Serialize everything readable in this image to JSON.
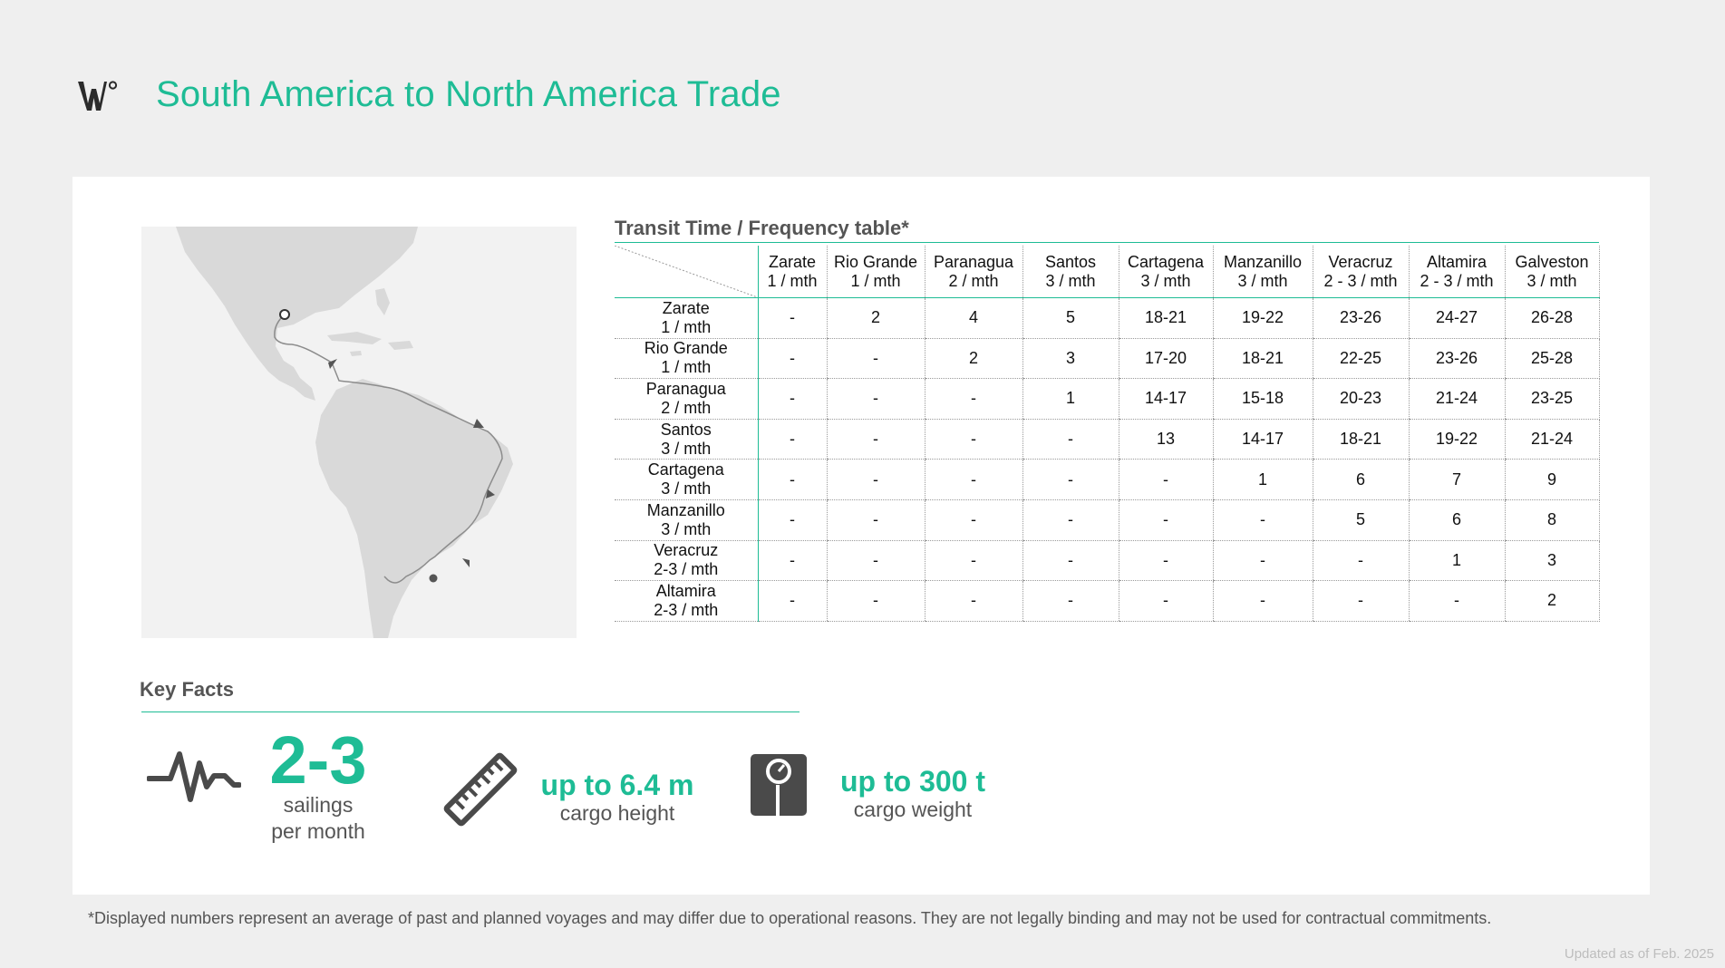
{
  "header": {
    "title": "South America to North America Trade",
    "logo_icon": "wallenius-wilhelmsen-logo-icon"
  },
  "colors": {
    "accent": "#1ebc95",
    "background": "#efefef",
    "card": "#ffffff",
    "text_muted": "#555555",
    "map_land": "#d9d9d9"
  },
  "map": {
    "icon": "route-map-icon",
    "route_color": "#8c8c8c"
  },
  "table": {
    "title": "Transit Time / Frequency table*",
    "columns": [
      {
        "port": "Zarate",
        "freq": "1 / mth"
      },
      {
        "port": "Rio Grande",
        "freq": "1 / mth"
      },
      {
        "port": "Paranagua",
        "freq": "2 / mth"
      },
      {
        "port": "Santos",
        "freq": "3 / mth"
      },
      {
        "port": "Cartagena",
        "freq": "3 / mth"
      },
      {
        "port": "Manzanillo",
        "freq": "3 / mth"
      },
      {
        "port": "Veracruz",
        "freq": "2 - 3 / mth"
      },
      {
        "port": "Altamira",
        "freq": "2 - 3 / mth"
      },
      {
        "port": "Galveston",
        "freq": "3 / mth"
      }
    ],
    "rows": [
      {
        "port": "Zarate",
        "freq": "1 / mth",
        "values": [
          "-",
          "2",
          "4",
          "5",
          "18-21",
          "19-22",
          "23-26",
          "24-27",
          "26-28"
        ]
      },
      {
        "port": "Rio Grande",
        "freq": "1 / mth",
        "values": [
          "-",
          "-",
          "2",
          "3",
          "17-20",
          "18-21",
          "22-25",
          "23-26",
          "25-28"
        ]
      },
      {
        "port": "Paranagua",
        "freq": "2 / mth",
        "values": [
          "-",
          "-",
          "-",
          "1",
          "14-17",
          "15-18",
          "20-23",
          "21-24",
          "23-25"
        ]
      },
      {
        "port": "Santos",
        "freq": "3 / mth",
        "values": [
          "-",
          "-",
          "-",
          "-",
          "13",
          "14-17",
          "18-21",
          "19-22",
          "21-24"
        ]
      },
      {
        "port": "Cartagena",
        "freq": "3 / mth",
        "values": [
          "-",
          "-",
          "-",
          "-",
          "-",
          "1",
          "6",
          "7",
          "9"
        ]
      },
      {
        "port": "Manzanillo",
        "freq": "3 / mth",
        "values": [
          "-",
          "-",
          "-",
          "-",
          "-",
          "-",
          "5",
          "6",
          "8"
        ]
      },
      {
        "port": "Veracruz",
        "freq": "2-3 / mth",
        "values": [
          "-",
          "-",
          "-",
          "-",
          "-",
          "-",
          "-",
          "1",
          "3"
        ]
      },
      {
        "port": "Altamira",
        "freq": "2-3 / mth",
        "values": [
          "-",
          "-",
          "-",
          "-",
          "-",
          "-",
          "-",
          "-",
          "2"
        ]
      }
    ]
  },
  "key_facts": {
    "title": "Key Facts",
    "sailings": {
      "icon": "pulse-icon",
      "value": "2-3",
      "label_line1": "sailings",
      "label_line2": "per month"
    },
    "height": {
      "icon": "ruler-icon",
      "value": "up to 6.4 m",
      "label": "cargo height"
    },
    "weight": {
      "icon": "scale-icon",
      "value": "up to 300 t",
      "label": "cargo weight"
    }
  },
  "footnote": "*Displayed numbers represent an average of past and planned voyages and may differ due to operational reasons. They are not legally binding and may not be used for contractual commitments.",
  "updated": "Updated as of Feb. 2025"
}
